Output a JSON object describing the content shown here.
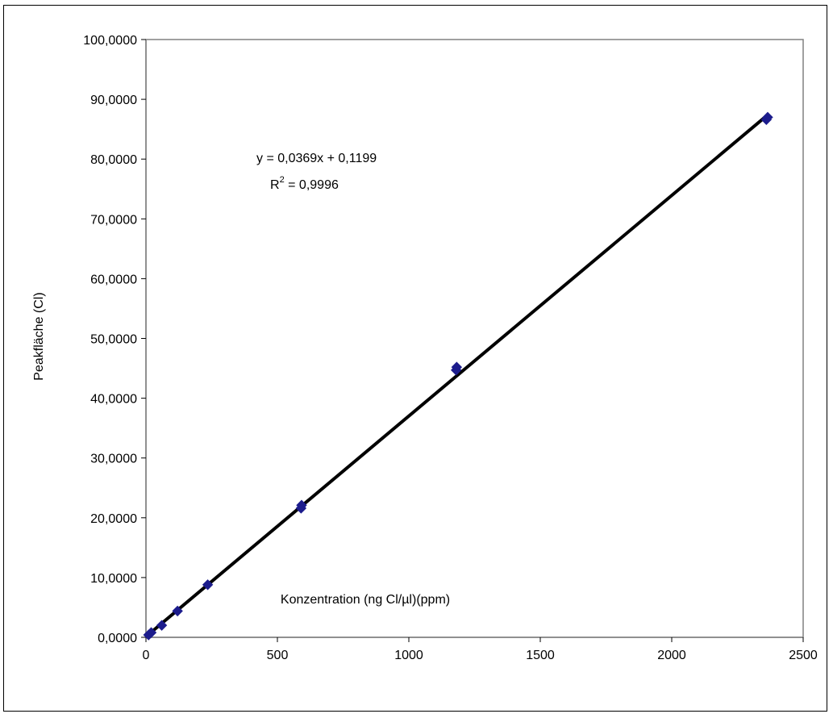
{
  "chart_data": {
    "type": "scatter",
    "title": "",
    "xlabel": "Konzentration (ng Cl/µl)(ppm)",
    "ylabel": "Peakfläche (Cl)",
    "xlim": [
      0,
      2500
    ],
    "ylim": [
      0,
      100
    ],
    "x_ticks": [
      0,
      500,
      1000,
      1500,
      2000,
      2500
    ],
    "x_tick_labels": [
      "0",
      "500",
      "1000",
      "1500",
      "2000",
      "2500"
    ],
    "y_ticks": [
      0,
      10,
      20,
      30,
      40,
      50,
      60,
      70,
      80,
      90,
      100
    ],
    "y_tick_labels": [
      "0,0000",
      "10,0000",
      "20,0000",
      "30,0000",
      "40,0000",
      "50,0000",
      "60,0000",
      "70,0000",
      "80,0000",
      "90,0000",
      "100,0000"
    ],
    "grid": false,
    "legend": "none",
    "series": [
      {
        "marker": "diamond",
        "color": "#1c1c8c",
        "points": [
          {
            "x": 10,
            "y": 0.4
          },
          {
            "x": 20,
            "y": 0.8
          },
          {
            "x": 60,
            "y": 2.0
          },
          {
            "x": 120,
            "y": 4.4
          },
          {
            "x": 235,
            "y": 8.8
          },
          {
            "x": 590,
            "y": 21.6
          },
          {
            "x": 592,
            "y": 22.1
          },
          {
            "x": 1180,
            "y": 44.7
          },
          {
            "x": 1182,
            "y": 45.2
          },
          {
            "x": 2360,
            "y": 86.6
          },
          {
            "x": 2365,
            "y": 87.0
          }
        ]
      }
    ],
    "trendline": {
      "type": "linear",
      "slope": 0.0369,
      "intercept": 0.1199,
      "x_range": [
        0,
        2365
      ],
      "color": "#000000",
      "equation_label": "y = 0,0369x + 0,1199",
      "r_squared_prefix": "R",
      "r_squared_sup": "2",
      "r_squared_value": " = 0,9996"
    }
  }
}
